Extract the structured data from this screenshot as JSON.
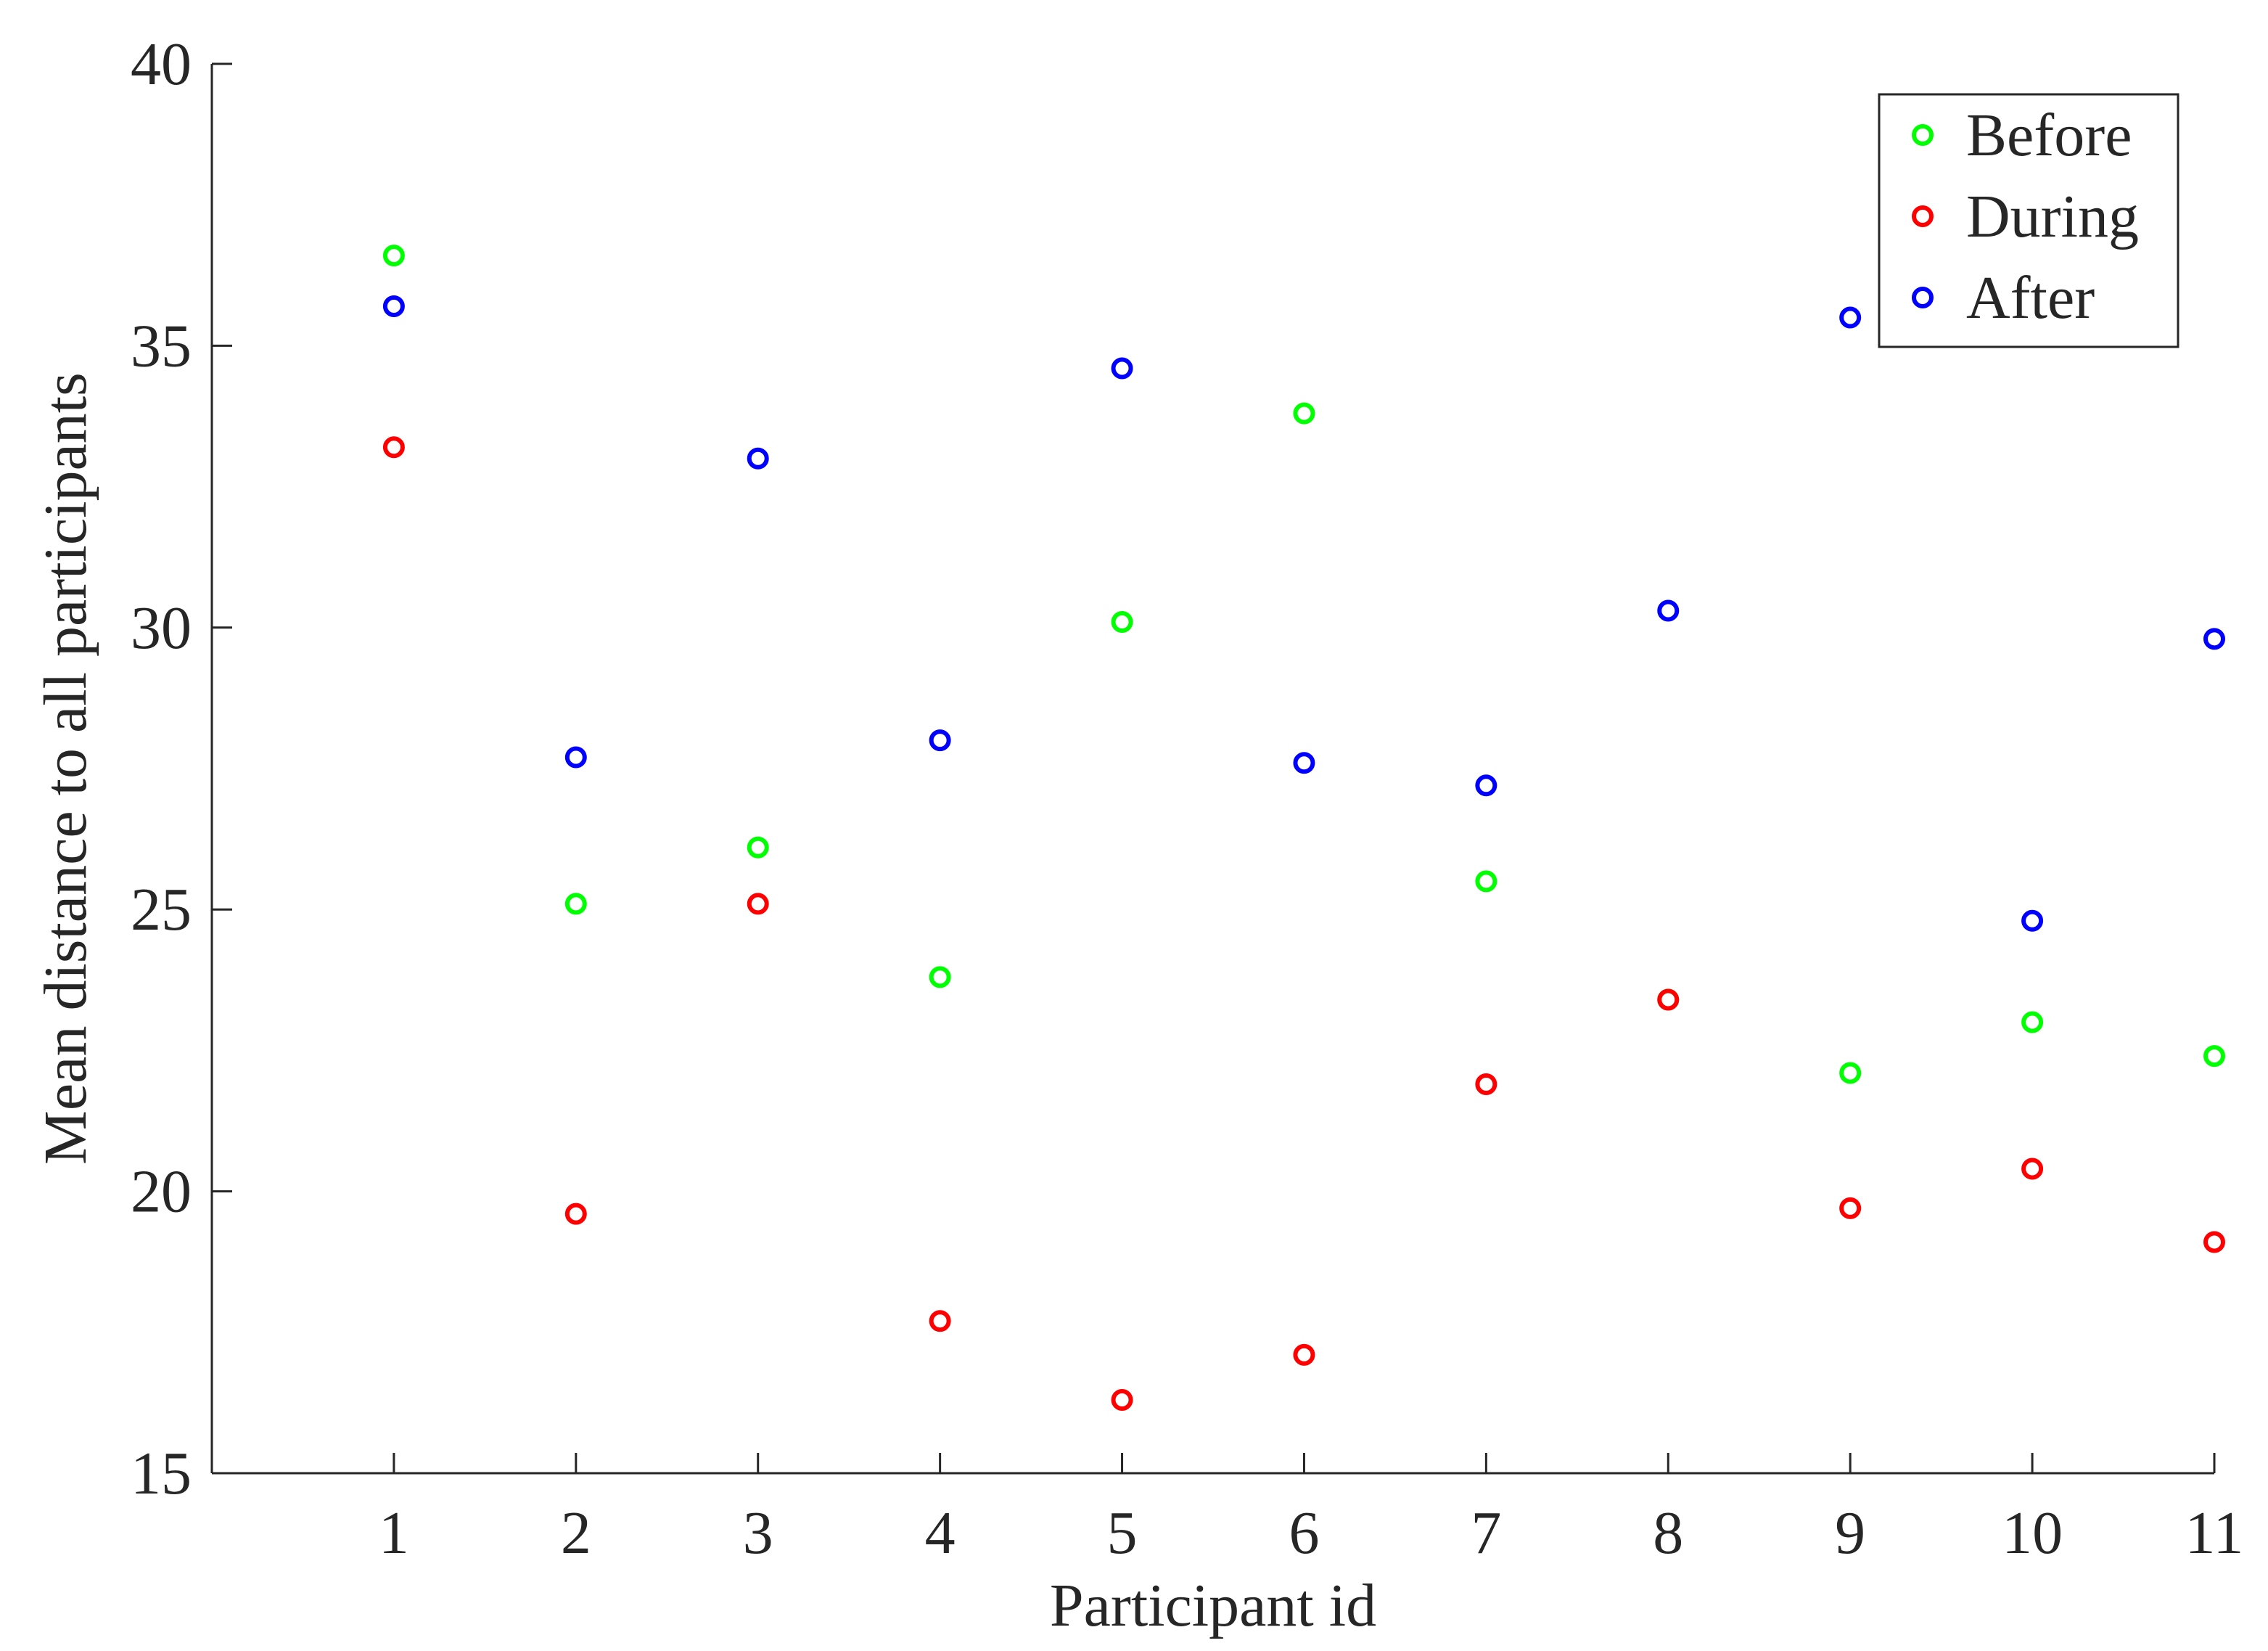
{
  "chart_data": {
    "type": "scatter",
    "title": "",
    "xlabel": "Participant id",
    "ylabel": "Mean distance to all participants",
    "xlim": [
      0,
      11
    ],
    "ylim": [
      15,
      40
    ],
    "xticks": [
      1,
      2,
      3,
      4,
      5,
      6,
      7,
      8,
      9,
      10,
      11
    ],
    "yticks": [
      15,
      20,
      25,
      30,
      35,
      40
    ],
    "grid": false,
    "legend_position": "top-right",
    "x": [
      1,
      2,
      3,
      4,
      5,
      6,
      7,
      8,
      9,
      10,
      11
    ],
    "series": [
      {
        "name": "Before",
        "color": "#00ff00",
        "marker": "circle-open",
        "values": [
          36.6,
          25.1,
          26.1,
          23.8,
          30.1,
          33.8,
          25.5,
          23.4,
          22.1,
          23.0,
          22.4
        ]
      },
      {
        "name": "During",
        "color": "#ff0000",
        "marker": "circle-open",
        "values": [
          33.2,
          19.6,
          25.1,
          17.7,
          16.3,
          17.1,
          21.9,
          23.4,
          19.7,
          20.4,
          19.1
        ]
      },
      {
        "name": "After",
        "color": "#0000ff",
        "marker": "circle-open",
        "values": [
          35.7,
          27.7,
          33.0,
          28.0,
          34.6,
          27.6,
          27.2,
          30.3,
          35.5,
          24.8,
          29.8
        ]
      }
    ]
  }
}
